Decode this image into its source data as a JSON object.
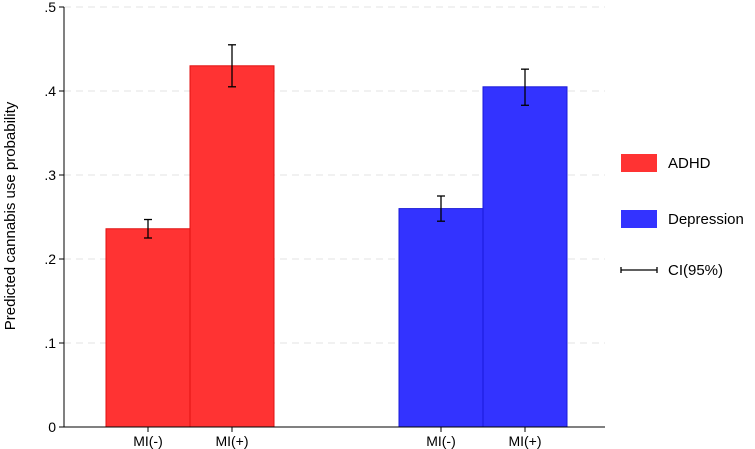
{
  "chart_data": {
    "type": "bar",
    "ylabel": "Predicted cannabis use probability",
    "ylim": [
      0,
      0.5
    ],
    "yticks": [
      0,
      0.1,
      0.2,
      0.3,
      0.4,
      0.5
    ],
    "ytick_labels": [
      "0",
      ".1",
      ".2",
      ".3",
      ".4",
      ".5"
    ],
    "grid": "horizontal dashed",
    "legend_position": "right",
    "groups": [
      {
        "name": "ADHD",
        "color": "#ff3333",
        "bars": [
          {
            "category": "MI(-)",
            "value": 0.236,
            "ci": [
              0.225,
              0.247
            ]
          },
          {
            "category": "MI(+)",
            "value": 0.43,
            "ci": [
              0.405,
              0.455
            ]
          }
        ]
      },
      {
        "name": "Depression",
        "color": "#3333ff",
        "bars": [
          {
            "category": "MI(-)",
            "value": 0.26,
            "ci": [
              0.245,
              0.275
            ]
          },
          {
            "category": "MI(+)",
            "value": 0.405,
            "ci": [
              0.383,
              0.426
            ]
          }
        ]
      }
    ],
    "legend": [
      {
        "label": "ADHD",
        "kind": "swatch",
        "color": "#ff3333"
      },
      {
        "label": "Depression",
        "kind": "swatch",
        "color": "#3333ff"
      },
      {
        "label": "CI(95%)",
        "kind": "line",
        "color": "#000000"
      }
    ]
  }
}
